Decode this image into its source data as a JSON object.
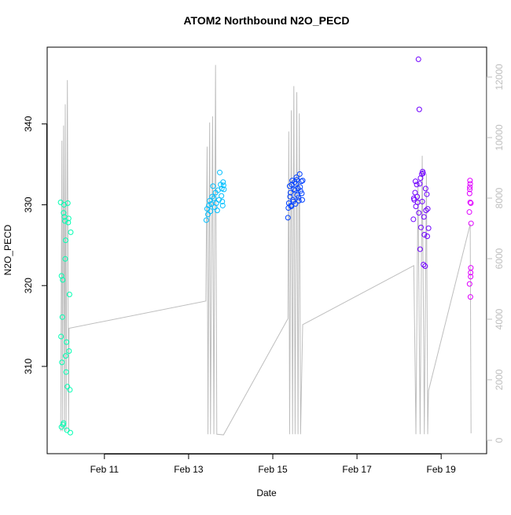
{
  "chart_data": {
    "type": "scatter",
    "title": "ATOM2 Northbound N2O_PECD",
    "xlabel": "Date",
    "ylabel": "N2O_PECD",
    "xlim": [
      9.64,
      20.08
    ],
    "ylim": [
      299.2,
      349.5
    ],
    "y2lim": [
      -442,
      12987
    ],
    "xticks": [
      {
        "value": 11,
        "label": "Feb 11"
      },
      {
        "value": 13,
        "label": "Feb 13"
      },
      {
        "value": 15,
        "label": "Feb 15"
      },
      {
        "value": 17,
        "label": "Feb 17"
      },
      {
        "value": 19,
        "label": "Feb 19"
      }
    ],
    "yticks": [
      310,
      320,
      330,
      340
    ],
    "y2ticks": [
      0,
      2000,
      4000,
      6000,
      8000,
      10000,
      12000
    ],
    "y2color": "#bebebe",
    "series": [
      {
        "type": "line",
        "axis": "y2",
        "color": "#bebebe",
        "x": [
          9.96,
          9.99,
          10.0,
          10.03,
          10.05,
          10.07,
          10.09,
          10.12,
          10.15,
          10.16,
          13.41,
          13.44,
          13.46,
          13.5,
          13.52,
          13.57,
          13.6,
          13.64,
          13.67,
          13.83,
          15.36,
          15.38,
          15.4,
          15.44,
          15.47,
          15.5,
          15.53,
          15.57,
          15.6,
          15.63,
          15.66,
          15.71,
          18.35,
          18.4,
          18.45,
          18.5,
          18.55,
          18.6,
          18.65,
          18.68,
          18.7,
          19.69,
          19.71
        ],
        "values": [
          300,
          9900,
          300,
          10400,
          300,
          11100,
          300,
          11900,
          300,
          3700,
          4600,
          9700,
          200,
          10500,
          200,
          10700,
          200,
          12400,
          200,
          180,
          4020,
          10200,
          200,
          10900,
          200,
          11700,
          200,
          11500,
          200,
          10800,
          200,
          3820,
          5770,
          200,
          8500,
          200,
          9400,
          200,
          8800,
          200,
          1640,
          7140,
          230
        ]
      },
      {
        "color": "#00ffb2",
        "x": [
          9.96,
          9.97,
          9.98,
          9.99,
          10.0,
          10.01,
          10.02,
          10.03,
          10.04,
          10.05,
          10.06,
          10.07,
          10.08,
          10.09,
          10.1,
          10.11,
          10.12,
          10.13,
          10.14,
          10.15,
          10.16,
          10.17,
          10.18,
          10.19,
          10.2,
          9.98,
          10.03,
          10.08
        ],
        "values": [
          330.3,
          313.7,
          321.2,
          310.5,
          316.1,
          320.7,
          302.8,
          329,
          330,
          328.5,
          328,
          323.3,
          311.3,
          309.3,
          313,
          302.1,
          307.5,
          330.2,
          327.8,
          328.3,
          311.9,
          318.9,
          307.1,
          301.8,
          326.6,
          302.5,
          303,
          325.6
        ]
      },
      {
        "color": "#00bfff",
        "x": [
          13.42,
          13.44,
          13.46,
          13.48,
          13.5,
          13.52,
          13.54,
          13.56,
          13.58,
          13.6,
          13.62,
          13.64,
          13.66,
          13.68,
          13.7,
          13.72,
          13.74,
          13.76,
          13.78,
          13.8,
          13.82,
          13.84,
          13.83,
          13.81,
          13.79
        ],
        "values": [
          328.1,
          329.5,
          328.8,
          329.9,
          330.5,
          329.2,
          330.1,
          331,
          332.3,
          330.8,
          329.7,
          331.5,
          330.2,
          329.3,
          331.8,
          330.6,
          334,
          332.5,
          331.1,
          330.4,
          332.8,
          331.9,
          332.4,
          329.9,
          332
        ]
      },
      {
        "color": "#0040ff",
        "x": [
          15.36,
          15.38,
          15.4,
          15.42,
          15.44,
          15.46,
          15.48,
          15.5,
          15.52,
          15.54,
          15.56,
          15.58,
          15.6,
          15.62,
          15.64,
          15.66,
          15.68,
          15.7,
          15.37,
          15.41,
          15.45,
          15.49,
          15.53,
          15.57,
          15.61,
          15.65,
          15.69,
          15.71,
          15.43,
          15.55
        ],
        "values": [
          328.4,
          330.2,
          332.3,
          331.5,
          329.8,
          333,
          330.6,
          331.9,
          332.8,
          330.1,
          333.4,
          331.2,
          332,
          330.5,
          333.8,
          331.7,
          332.9,
          330.6,
          329.6,
          331,
          332.5,
          330.4,
          331.8,
          333.1,
          330.9,
          332.2,
          331.4,
          333,
          329.9,
          332.6
        ]
      },
      {
        "color": "#7000ff",
        "x": [
          18.34,
          18.36,
          18.38,
          18.4,
          18.42,
          18.44,
          18.46,
          18.48,
          18.5,
          18.52,
          18.54,
          18.56,
          18.58,
          18.6,
          18.62,
          18.64,
          18.66,
          18.68,
          18.7,
          18.35,
          18.39,
          18.43,
          18.47,
          18.51,
          18.55,
          18.59,
          18.63,
          18.67,
          18.49,
          18.57
        ],
        "values": [
          328.2,
          330.6,
          331.5,
          329.8,
          332.5,
          330.3,
          348,
          341.8,
          324.5,
          327.2,
          333.8,
          334.1,
          322.6,
          326.3,
          322.4,
          329.3,
          331.3,
          329.5,
          327.1,
          330.8,
          332.9,
          331,
          329,
          333.3,
          330.4,
          328.5,
          332,
          326.1,
          332.6,
          333.9
        ]
      },
      {
        "color": "#e000ff",
        "x": [
          19.67,
          19.675,
          19.68,
          19.685,
          19.69,
          19.695,
          19.7,
          19.705,
          19.71,
          19.68,
          19.69,
          19.7,
          19.675,
          19.705
        ],
        "values": [
          329.1,
          331.4,
          332.2,
          333,
          330.3,
          318.6,
          321.6,
          322.2,
          327.7,
          331.9,
          332.6,
          321.1,
          320.2,
          330.2
        ]
      }
    ]
  }
}
